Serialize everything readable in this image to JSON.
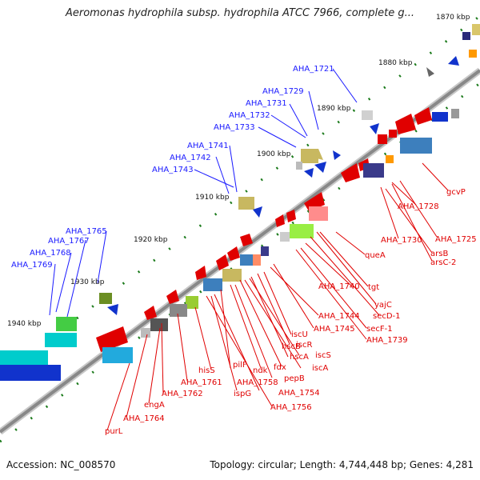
{
  "header": {
    "title": "Aeromonas hydrophila subsp. hydrophila ATCC 7966, complete g..."
  },
  "footer": {
    "accession": "Accession: NC_008570",
    "summary": "Topology: circular; Length: 4,744,448 bp; Genes: 4,281"
  },
  "scale_marks": [
    {
      "id": "kbp-1870",
      "label": "1870 kbp"
    },
    {
      "id": "kbp-1880",
      "label": "1880 kbp"
    },
    {
      "id": "kbp-1890",
      "label": "1890 kbp"
    },
    {
      "id": "kbp-1900",
      "label": "1900 kbp"
    },
    {
      "id": "kbp-1910",
      "label": "1910 kbp"
    },
    {
      "id": "kbp-1920",
      "label": "1920 kbp"
    },
    {
      "id": "kbp-1930",
      "label": "1930 kbp"
    },
    {
      "id": "kbp-1940",
      "label": "1940 kbp"
    }
  ],
  "blue_labels": [
    "AHA_1721",
    "AHA_1729",
    "AHA_1731",
    "AHA_1732",
    "AHA_1733",
    "AHA_1741",
    "AHA_1742",
    "AHA_1743",
    "AHA_1765",
    "AHA_1767",
    "AHA_1768",
    "AHA_1769"
  ],
  "red_labels": [
    "gcvP",
    "AHA_1728",
    "AHA_1725",
    "AHA_1730",
    "arsB",
    "arsC-2",
    "queA",
    "tgt",
    "AHA_1740",
    "yajC",
    "secD-1",
    "secF-1",
    "AHA_1739",
    "AHA_1744",
    "AHA_1745",
    "iscU",
    "iscR",
    "hscB",
    "hscA",
    "iscS",
    "fdx",
    "iscA",
    "pepB",
    "ndk",
    "pilF",
    "AHA_1758",
    "AHA_1754",
    "ispG",
    "AHA_1756",
    "hisS",
    "AHA_1761",
    "AHA_1762",
    "engA",
    "AHA_1764",
    "purL"
  ],
  "colors": {
    "backbone": "#8a8a8a",
    "blue_label": "#1a1aff",
    "red_label": "#e00000",
    "tick": "#1a7a1a"
  }
}
